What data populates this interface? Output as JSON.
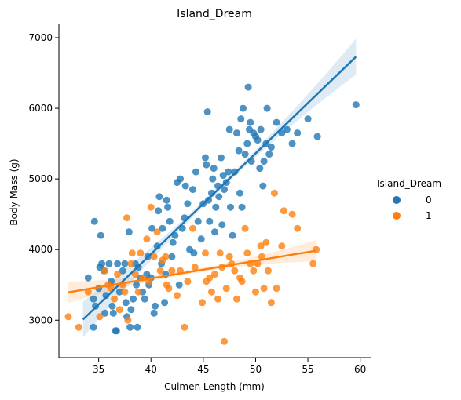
{
  "chart_data": {
    "type": "scatter",
    "title": "Island_Dream",
    "xlabel": "Culmen Length (mm)",
    "ylabel": "Body Mass (g)",
    "xlim": [
      31.2,
      61.0
    ],
    "ylim": [
      2470,
      7200
    ],
    "xticks": [
      35,
      40,
      45,
      50,
      55,
      60
    ],
    "yticks": [
      3000,
      4000,
      5000,
      6000,
      7000
    ],
    "grid": false,
    "legend": {
      "title": "Island_Dream",
      "placement": "right",
      "entries": [
        {
          "label": "0",
          "color": "#1f77b4"
        },
        {
          "label": "1",
          "color": "#ff7f0e"
        }
      ]
    },
    "series": [
      {
        "name": "0",
        "color": "#1f77b4",
        "trend": {
          "x": [
            33.5,
            59.6
          ],
          "y": [
            3010,
            6730
          ]
        },
        "points": [
          [
            34.0,
            3600
          ],
          [
            34.5,
            3300
          ],
          [
            34.6,
            4400
          ],
          [
            34.7,
            3200
          ],
          [
            34.5,
            2900
          ],
          [
            35.0,
            3450
          ],
          [
            35.1,
            3750
          ],
          [
            35.2,
            4200
          ],
          [
            35.3,
            3800
          ],
          [
            35.5,
            3700
          ],
          [
            35.6,
            3100
          ],
          [
            35.7,
            3350
          ],
          [
            36.0,
            3800
          ],
          [
            36.2,
            3550
          ],
          [
            36.3,
            3200
          ],
          [
            36.4,
            3100
          ],
          [
            36.6,
            2850
          ],
          [
            36.7,
            2850
          ],
          [
            36.8,
            3800
          ],
          [
            37.0,
            3400
          ],
          [
            37.3,
            3700
          ],
          [
            37.5,
            3800
          ],
          [
            37.6,
            3250
          ],
          [
            37.7,
            3050
          ],
          [
            37.9,
            4250
          ],
          [
            38.0,
            2900
          ],
          [
            38.1,
            3150
          ],
          [
            38.3,
            3300
          ],
          [
            38.5,
            3800
          ],
          [
            38.6,
            3500
          ],
          [
            38.7,
            2900
          ],
          [
            38.8,
            3750
          ],
          [
            39.0,
            3600
          ],
          [
            39.2,
            3400
          ],
          [
            39.4,
            3300
          ],
          [
            39.6,
            3650
          ],
          [
            39.7,
            3900
          ],
          [
            39.8,
            3500
          ],
          [
            40.0,
            3600
          ],
          [
            40.1,
            4300
          ],
          [
            40.3,
            3100
          ],
          [
            40.4,
            3200
          ],
          [
            40.6,
            4050
          ],
          [
            40.7,
            4550
          ],
          [
            40.8,
            4750
          ],
          [
            41.0,
            3800
          ],
          [
            41.1,
            4300
          ],
          [
            41.3,
            3250
          ],
          [
            41.4,
            3650
          ],
          [
            41.5,
            4700
          ],
          [
            41.6,
            4600
          ],
          [
            41.8,
            4400
          ],
          [
            42.0,
            3900
          ],
          [
            42.1,
            4100
          ],
          [
            42.3,
            4200
          ],
          [
            42.5,
            4950
          ],
          [
            42.7,
            3500
          ],
          [
            42.8,
            5000
          ],
          [
            43.0,
            4300
          ],
          [
            43.2,
            4450
          ],
          [
            43.3,
            4900
          ],
          [
            43.5,
            4650
          ],
          [
            43.7,
            4000
          ],
          [
            44.0,
            4850
          ],
          [
            44.1,
            3950
          ],
          [
            44.3,
            5100
          ],
          [
            44.5,
            4400
          ],
          [
            44.8,
            4150
          ],
          [
            45.0,
            4650
          ],
          [
            45.2,
            5300
          ],
          [
            45.3,
            5200
          ],
          [
            45.4,
            5950
          ],
          [
            45.5,
            4700
          ],
          [
            45.6,
            4400
          ],
          [
            45.8,
            4800
          ],
          [
            45.9,
            5000
          ],
          [
            46.0,
            5150
          ],
          [
            46.1,
            4250
          ],
          [
            46.2,
            4600
          ],
          [
            46.4,
            4900
          ],
          [
            46.5,
            4750
          ],
          [
            46.7,
            5300
          ],
          [
            46.8,
            4350
          ],
          [
            46.9,
            5050
          ],
          [
            47.0,
            4850
          ],
          [
            47.2,
            4950
          ],
          [
            47.4,
            5100
          ],
          [
            47.5,
            5700
          ],
          [
            47.6,
            4600
          ],
          [
            47.8,
            4200
          ],
          [
            48.0,
            5100
          ],
          [
            48.2,
            5650
          ],
          [
            48.4,
            5400
          ],
          [
            48.5,
            4800
          ],
          [
            48.6,
            5850
          ],
          [
            48.7,
            4600
          ],
          [
            48.8,
            6000
          ],
          [
            49.0,
            5350
          ],
          [
            49.2,
            5500
          ],
          [
            49.3,
            6300
          ],
          [
            49.4,
            5700
          ],
          [
            49.5,
            5800
          ],
          [
            49.6,
            5250
          ],
          [
            49.8,
            5650
          ],
          [
            50.0,
            5600
          ],
          [
            50.2,
            5550
          ],
          [
            50.4,
            5150
          ],
          [
            50.5,
            5700
          ],
          [
            50.7,
            4900
          ],
          [
            50.8,
            5250
          ],
          [
            51.0,
            5500
          ],
          [
            51.1,
            6000
          ],
          [
            51.3,
            5350
          ],
          [
            51.5,
            5450
          ],
          [
            52.0,
            5800
          ],
          [
            52.5,
            5650
          ],
          [
            53.0,
            5700
          ],
          [
            53.5,
            5500
          ],
          [
            54.0,
            5650
          ],
          [
            55.0,
            5850
          ],
          [
            55.9,
            5600
          ],
          [
            59.6,
            6050
          ]
        ]
      },
      {
        "name": "1",
        "color": "#ff7f0e",
        "trend": {
          "x": [
            32.1,
            55.8
          ],
          "y": [
            3395,
            3985
          ]
        },
        "points": [
          [
            32.1,
            3050
          ],
          [
            33.1,
            2900
          ],
          [
            34.0,
            3400
          ],
          [
            35.1,
            3050
          ],
          [
            35.6,
            3700
          ],
          [
            35.9,
            3500
          ],
          [
            36.2,
            3450
          ],
          [
            36.5,
            3300
          ],
          [
            36.8,
            3650
          ],
          [
            37.0,
            3150
          ],
          [
            37.3,
            3500
          ],
          [
            37.5,
            3400
          ],
          [
            37.7,
            4450
          ],
          [
            37.8,
            3000
          ],
          [
            38.1,
            3800
          ],
          [
            38.2,
            3950
          ],
          [
            38.5,
            3650
          ],
          [
            38.8,
            3400
          ],
          [
            39.0,
            3950
          ],
          [
            39.2,
            3600
          ],
          [
            39.6,
            4150
          ],
          [
            39.8,
            3550
          ],
          [
            40.0,
            4600
          ],
          [
            40.3,
            3900
          ],
          [
            40.6,
            4250
          ],
          [
            40.9,
            3700
          ],
          [
            41.1,
            3850
          ],
          [
            41.4,
            3900
          ],
          [
            41.5,
            3500
          ],
          [
            41.7,
            3450
          ],
          [
            42.0,
            3700
          ],
          [
            42.5,
            3350
          ],
          [
            42.8,
            3700
          ],
          [
            43.2,
            2900
          ],
          [
            43.5,
            3550
          ],
          [
            44.0,
            4300
          ],
          [
            44.2,
            3750
          ],
          [
            44.9,
            3250
          ],
          [
            45.2,
            3950
          ],
          [
            45.3,
            3550
          ],
          [
            45.6,
            3600
          ],
          [
            45.8,
            3400
          ],
          [
            46.1,
            3650
          ],
          [
            46.4,
            3300
          ],
          [
            46.6,
            3950
          ],
          [
            46.8,
            3750
          ],
          [
            47.0,
            2700
          ],
          [
            47.2,
            3450
          ],
          [
            47.5,
            3900
          ],
          [
            47.7,
            3800
          ],
          [
            48.0,
            3700
          ],
          [
            48.2,
            3300
          ],
          [
            48.5,
            3600
          ],
          [
            48.7,
            3550
          ],
          [
            49.0,
            4300
          ],
          [
            49.2,
            3950
          ],
          [
            49.5,
            3800
          ],
          [
            49.8,
            3700
          ],
          [
            50.0,
            3400
          ],
          [
            50.2,
            3800
          ],
          [
            50.5,
            4050
          ],
          [
            50.6,
            3900
          ],
          [
            50.8,
            3450
          ],
          [
            51.0,
            4100
          ],
          [
            51.2,
            3700
          ],
          [
            51.5,
            3250
          ],
          [
            51.8,
            4800
          ],
          [
            52.0,
            3450
          ],
          [
            52.5,
            4050
          ],
          [
            52.7,
            4550
          ],
          [
            53.5,
            4500
          ],
          [
            54.0,
            4300
          ],
          [
            55.8,
            4000
          ],
          [
            55.5,
            3800
          ]
        ]
      }
    ]
  }
}
